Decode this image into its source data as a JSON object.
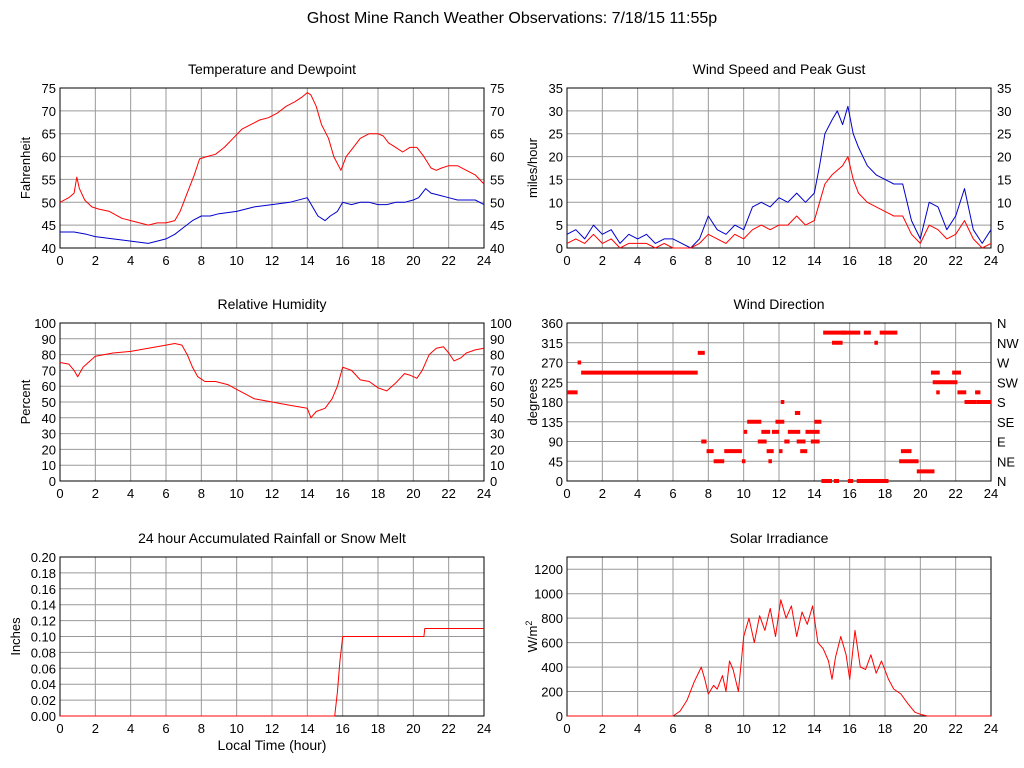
{
  "page_title": "Ghost Mine Ranch Weather Observations: 7/18/15 11:55p",
  "colors": {
    "grid": "#999999",
    "axis": "#000000",
    "red": "#ff0000",
    "blue": "#0000cc"
  },
  "chart_data": [
    {
      "id": "temp",
      "type": "line",
      "title": "Temperature and Dewpoint",
      "xlabel": "",
      "ylabel": "Fahrenheit",
      "xlim": [
        0,
        24
      ],
      "ylim": [
        40,
        75
      ],
      "xticks": [
        0,
        2,
        4,
        6,
        8,
        10,
        12,
        14,
        16,
        18,
        20,
        22,
        24
      ],
      "yticks": [
        40,
        45,
        50,
        55,
        60,
        65,
        70,
        75
      ],
      "right_ticks": [
        "40",
        "45",
        "50",
        "55",
        "60",
        "65",
        "70",
        "75"
      ],
      "grid": true,
      "series": [
        {
          "color": "red",
          "x": [
            0,
            0.5,
            0.8,
            0.95,
            1.1,
            1.4,
            1.8,
            2.2,
            2.8,
            3.5,
            4.0,
            4.5,
            5.0,
            5.5,
            6.0,
            6.5,
            6.8,
            7.2,
            7.6,
            7.9,
            8.3,
            8.8,
            9.3,
            9.8,
            10.3,
            10.8,
            11.3,
            11.8,
            12.3,
            12.8,
            13.3,
            13.7,
            14.0,
            14.2,
            14.5,
            14.8,
            15.2,
            15.5,
            15.9,
            16.2,
            16.6,
            17.0,
            17.5,
            18.0,
            18.3,
            18.6,
            19.0,
            19.4,
            19.8,
            20.2,
            20.6,
            21.0,
            21.3,
            21.6,
            22.0,
            22.5,
            23.0,
            23.5,
            24.0
          ],
          "y": [
            50,
            51,
            52,
            55.5,
            53,
            50.5,
            49,
            48.5,
            48,
            46.5,
            46,
            45.5,
            45,
            45.5,
            45.5,
            46,
            48,
            52,
            56,
            59.5,
            60,
            60.5,
            62,
            64,
            66,
            67,
            68,
            68.5,
            69.5,
            71,
            72,
            73,
            74,
            73.5,
            71,
            67,
            64,
            60,
            57,
            60,
            62,
            64,
            65,
            65,
            64.5,
            63,
            62,
            61,
            62,
            62,
            60,
            57.5,
            57,
            57.5,
            58,
            58,
            57,
            56,
            54
          ]
        },
        {
          "color": "blue",
          "x": [
            0,
            0.8,
            1.5,
            2.0,
            3.0,
            4.0,
            5.0,
            5.5,
            6.0,
            6.5,
            7.0,
            7.5,
            8.0,
            8.5,
            9.0,
            10.0,
            10.5,
            11.0,
            12.0,
            13.0,
            14.0,
            14.3,
            14.6,
            15.0,
            15.3,
            15.7,
            16.0,
            16.5,
            17.0,
            17.5,
            18.0,
            18.5,
            19.0,
            19.5,
            20.0,
            20.3,
            20.7,
            21.0,
            21.5,
            22.0,
            22.5,
            23.0,
            23.5,
            24.0
          ],
          "y": [
            43.5,
            43.5,
            43,
            42.5,
            42,
            41.5,
            41,
            41.5,
            42,
            43,
            44.5,
            46,
            47,
            47,
            47.5,
            48,
            48.5,
            49,
            49.5,
            50,
            51,
            49,
            47,
            46,
            47,
            48,
            50,
            49.5,
            50,
            50,
            49.5,
            49.5,
            50,
            50,
            50.5,
            51,
            53,
            52,
            51.5,
            51,
            50.5,
            50.5,
            50.5,
            49.5
          ]
        }
      ]
    },
    {
      "id": "wind",
      "type": "line",
      "title": "Wind Speed and Peak Gust",
      "xlabel": "",
      "ylabel": "miles/hour",
      "xlim": [
        0,
        24
      ],
      "ylim": [
        0,
        35
      ],
      "xticks": [
        0,
        2,
        4,
        6,
        8,
        10,
        12,
        14,
        16,
        18,
        20,
        22,
        24
      ],
      "yticks": [
        0,
        5,
        10,
        15,
        20,
        25,
        30,
        35
      ],
      "right_ticks": [
        "0",
        "5",
        "10",
        "15",
        "20",
        "25",
        "30",
        "35"
      ],
      "grid": true,
      "series": [
        {
          "color": "blue",
          "x": [
            0,
            0.5,
            1,
            1.5,
            2,
            2.5,
            3,
            3.5,
            4,
            4.5,
            5,
            5.5,
            6,
            6.5,
            7,
            7.5,
            8,
            8.5,
            9,
            9.5,
            10,
            10.5,
            11,
            11.5,
            12,
            12.5,
            13,
            13.5,
            14,
            14.3,
            14.6,
            15,
            15.3,
            15.6,
            15.9,
            16.2,
            16.5,
            17,
            17.5,
            18,
            18.5,
            19,
            19.5,
            20,
            20.5,
            21,
            21.5,
            22,
            22.5,
            23,
            23.5,
            24
          ],
          "y": [
            3,
            4,
            2,
            5,
            3,
            4,
            1,
            3,
            2,
            3,
            1,
            2,
            2,
            1,
            0,
            2,
            7,
            4,
            3,
            5,
            4,
            9,
            10,
            9,
            11,
            10,
            12,
            10,
            12,
            18,
            25,
            28,
            30,
            27,
            31,
            25,
            22,
            18,
            16,
            15,
            14,
            14,
            6,
            2,
            10,
            9,
            4,
            7,
            13,
            4,
            1,
            4
          ]
        },
        {
          "color": "red",
          "x": [
            0,
            0.5,
            1,
            1.5,
            2,
            2.5,
            3,
            3.5,
            4,
            4.5,
            5,
            5.5,
            6,
            6.5,
            7,
            7.5,
            8,
            8.5,
            9,
            9.5,
            10,
            10.5,
            11,
            11.5,
            12,
            12.5,
            13,
            13.5,
            14,
            14.3,
            14.6,
            15,
            15.3,
            15.6,
            15.9,
            16.2,
            16.5,
            17,
            17.5,
            18,
            18.5,
            19,
            19.5,
            20,
            20.5,
            21,
            21.5,
            22,
            22.5,
            23,
            23.5,
            24
          ],
          "y": [
            1,
            2,
            1,
            3,
            1,
            2,
            0,
            1,
            1,
            1,
            0,
            1,
            0,
            0,
            0,
            1,
            3,
            2,
            1,
            3,
            2,
            4,
            5,
            4,
            5,
            5,
            7,
            5,
            6,
            10,
            14,
            16,
            17,
            18,
            20,
            15,
            12,
            10,
            9,
            8,
            7,
            7,
            3,
            1,
            5,
            4,
            2,
            3,
            6,
            2,
            0,
            1
          ]
        }
      ]
    },
    {
      "id": "rh",
      "type": "line",
      "title": "Relative Humidity",
      "xlabel": "",
      "ylabel": "Percent",
      "xlim": [
        0,
        24
      ],
      "ylim": [
        0,
        100
      ],
      "xticks": [
        0,
        2,
        4,
        6,
        8,
        10,
        12,
        14,
        16,
        18,
        20,
        22,
        24
      ],
      "yticks": [
        0,
        10,
        20,
        30,
        40,
        50,
        60,
        70,
        80,
        90,
        100
      ],
      "right_ticks": [
        "0",
        "10",
        "20",
        "30",
        "40",
        "50",
        "60",
        "70",
        "80",
        "90",
        "100"
      ],
      "grid": true,
      "series": [
        {
          "color": "red",
          "x": [
            0,
            0.5,
            0.8,
            1.0,
            1.3,
            2.0,
            3.0,
            4.0,
            5.0,
            6.0,
            6.5,
            6.9,
            7.2,
            7.5,
            7.8,
            8.2,
            8.8,
            9.5,
            10.0,
            10.5,
            11.0,
            12.0,
            13.0,
            14.0,
            14.2,
            14.5,
            15.0,
            15.4,
            15.7,
            16.0,
            16.5,
            17.0,
            17.5,
            18.0,
            18.5,
            19.0,
            19.5,
            19.8,
            20.2,
            20.5,
            20.9,
            21.3,
            21.7,
            22.0,
            22.3,
            22.7,
            23.0,
            23.5,
            24.0
          ],
          "y": [
            75,
            74,
            70,
            66,
            72,
            79,
            81,
            82,
            84,
            86,
            87,
            86,
            80,
            72,
            66,
            63,
            63,
            61,
            58,
            55,
            52,
            50,
            48,
            46,
            40,
            44,
            46,
            52,
            60,
            72,
            70,
            64,
            63,
            59,
            57,
            62,
            68,
            67,
            65,
            70,
            80,
            84,
            85,
            81,
            76,
            78,
            81,
            83,
            84
          ]
        }
      ]
    },
    {
      "id": "wdir",
      "type": "scatter",
      "title": "Wind Direction",
      "xlabel": "",
      "ylabel": "degrees",
      "xlim": [
        0,
        24
      ],
      "ylim": [
        0,
        360
      ],
      "xticks": [
        0,
        2,
        4,
        6,
        8,
        10,
        12,
        14,
        16,
        18,
        20,
        22,
        24
      ],
      "yticks": [
        0,
        45,
        90,
        135,
        180,
        225,
        270,
        315,
        360
      ],
      "right_ticks": [
        "N",
        "NE",
        "E",
        "SE",
        "S",
        "SW",
        "W",
        "NW",
        "N"
      ],
      "grid": true,
      "segments": [
        [
          0,
          0.6,
          202
        ],
        [
          0.6,
          0.8,
          270
        ],
        [
          0.8,
          7.4,
          247
        ],
        [
          7.4,
          7.8,
          292
        ],
        [
          7.6,
          7.9,
          90
        ],
        [
          7.9,
          8.3,
          68
        ],
        [
          8.3,
          8.9,
          45
        ],
        [
          8.9,
          9.9,
          68
        ],
        [
          9.9,
          10.1,
          45
        ],
        [
          10.0,
          10.2,
          112
        ],
        [
          10.2,
          10.5,
          135
        ],
        [
          10.5,
          11.0,
          135
        ],
        [
          10.8,
          11.3,
          90
        ],
        [
          11.0,
          11.5,
          112
        ],
        [
          11.3,
          11.7,
          68
        ],
        [
          11.4,
          11.6,
          45
        ],
        [
          11.6,
          12.0,
          112
        ],
        [
          11.8,
          12.3,
          135
        ],
        [
          12.0,
          12.2,
          68
        ],
        [
          12.1,
          12.3,
          180
        ],
        [
          12.3,
          12.6,
          90
        ],
        [
          12.5,
          13.2,
          112
        ],
        [
          12.9,
          13.2,
          155
        ],
        [
          13.0,
          13.5,
          90
        ],
        [
          13.2,
          13.6,
          68
        ],
        [
          13.5,
          14.3,
          112
        ],
        [
          13.8,
          14.3,
          90
        ],
        [
          14.0,
          14.4,
          135
        ],
        [
          14.4,
          15.0,
          0
        ],
        [
          14.5,
          15.8,
          338
        ],
        [
          15.0,
          15.6,
          315
        ],
        [
          15.1,
          15.4,
          0
        ],
        [
          15.5,
          16.6,
          338
        ],
        [
          15.9,
          16.2,
          0
        ],
        [
          16.4,
          17.8,
          0
        ],
        [
          16.8,
          17.2,
          338
        ],
        [
          17.4,
          17.6,
          315
        ],
        [
          17.7,
          18.7,
          338
        ],
        [
          17.7,
          18.2,
          0
        ],
        [
          18.9,
          19.5,
          68
        ],
        [
          18.8,
          19.9,
          45
        ],
        [
          19.8,
          20.8,
          22
        ],
        [
          20.6,
          21.1,
          247
        ],
        [
          20.7,
          21.0,
          225
        ],
        [
          20.9,
          21.1,
          202
        ],
        [
          21.0,
          22.1,
          225
        ],
        [
          21.8,
          22.3,
          247
        ],
        [
          22.1,
          22.6,
          202
        ],
        [
          22.5,
          22.9,
          180
        ],
        [
          22.7,
          23.2,
          180
        ],
        [
          23.1,
          23.4,
          202
        ],
        [
          23.2,
          24.0,
          180
        ]
      ]
    },
    {
      "id": "rain",
      "type": "line",
      "title": "24 hour Accumulated Rainfall or Snow Melt",
      "xlabel": "Local Time (hour)",
      "ylabel": "Inches",
      "xlim": [
        0,
        24
      ],
      "ylim": [
        0,
        0.2
      ],
      "xticks": [
        0,
        2,
        4,
        6,
        8,
        10,
        12,
        14,
        16,
        18,
        20,
        22,
        24
      ],
      "yticks": [
        0,
        0.02,
        0.04,
        0.06,
        0.08,
        0.1,
        0.12,
        0.14,
        0.16,
        0.18,
        0.2
      ],
      "ytick_labels": [
        "0.00",
        "0.02",
        "0.04",
        "0.06",
        "0.08",
        "0.10",
        "0.12",
        "0.14",
        "0.16",
        "0.18",
        "0.20"
      ],
      "grid": true,
      "series": [
        {
          "color": "red",
          "x": [
            0,
            15.55,
            15.7,
            15.85,
            16.0,
            20.6,
            20.65,
            24
          ],
          "y": [
            0,
            0,
            0.03,
            0.07,
            0.1,
            0.1,
            0.11,
            0.11
          ]
        }
      ]
    },
    {
      "id": "solar",
      "type": "line",
      "title": "Solar Irradiance",
      "xlabel": "",
      "ylabel": "W/m",
      "ylabel_sup": "2",
      "xlim": [
        0,
        24
      ],
      "ylim": [
        0,
        1300
      ],
      "xticks": [
        0,
        2,
        4,
        6,
        8,
        10,
        12,
        14,
        16,
        18,
        20,
        22,
        24
      ],
      "yticks": [
        0,
        200,
        400,
        600,
        800,
        1000,
        1200
      ],
      "grid": true,
      "series": [
        {
          "color": "red",
          "x": [
            0,
            6.0,
            6.4,
            6.8,
            7.2,
            7.6,
            7.8,
            8.0,
            8.3,
            8.5,
            8.8,
            9.0,
            9.2,
            9.4,
            9.7,
            10.0,
            10.3,
            10.6,
            10.9,
            11.2,
            11.5,
            11.8,
            12.1,
            12.4,
            12.7,
            13.0,
            13.3,
            13.6,
            13.9,
            14.2,
            14.5,
            14.8,
            15.0,
            15.2,
            15.5,
            15.8,
            16.0,
            16.3,
            16.6,
            16.9,
            17.2,
            17.5,
            17.8,
            18.2,
            18.5,
            18.9,
            19.3,
            19.7,
            20.1,
            20.4,
            24
          ],
          "y": [
            0,
            0,
            40,
            130,
            280,
            400,
            300,
            180,
            250,
            220,
            330,
            200,
            450,
            380,
            200,
            650,
            800,
            600,
            820,
            700,
            880,
            650,
            950,
            800,
            900,
            650,
            850,
            750,
            900,
            600,
            550,
            450,
            300,
            480,
            650,
            500,
            300,
            700,
            400,
            380,
            500,
            350,
            450,
            300,
            220,
            180,
            100,
            30,
            10,
            0,
            0
          ]
        }
      ]
    }
  ]
}
